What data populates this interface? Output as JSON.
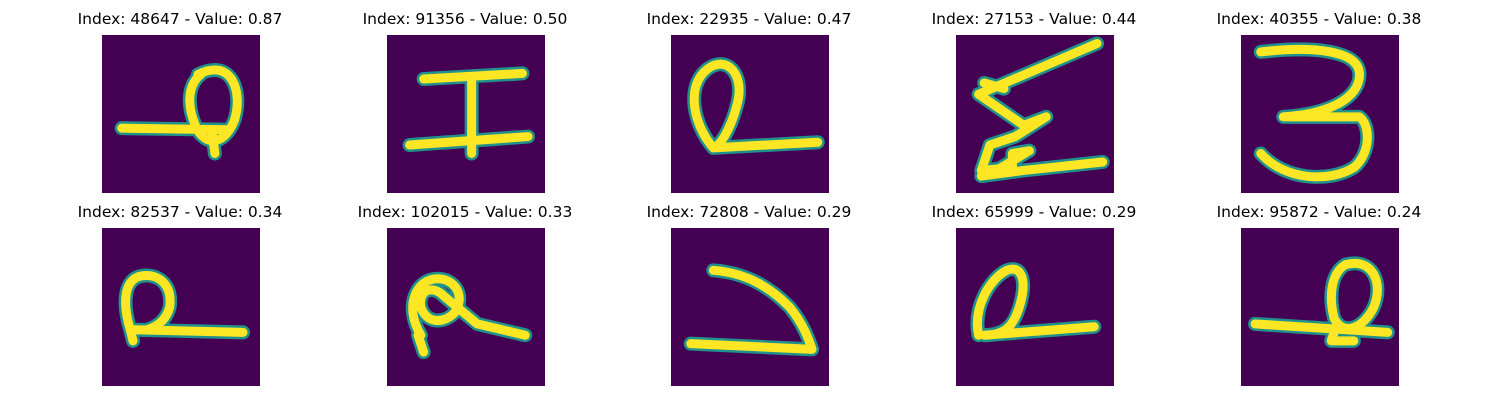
{
  "colormap": "viridis",
  "colors": {
    "background": "#440154",
    "mid": "#21918c",
    "high": "#fde725",
    "title_text": "#000000"
  },
  "panels": [
    {
      "title": "Index: 48647 - Value: 0.87",
      "index": 48647,
      "value": 0.87,
      "image": "handwritten-glyph"
    },
    {
      "title": "Index: 91356 - Value: 0.50",
      "index": 91356,
      "value": 0.5,
      "image": "handwritten-glyph"
    },
    {
      "title": "Index: 22935 - Value: 0.47",
      "index": 22935,
      "value": 0.47,
      "image": "handwritten-glyph"
    },
    {
      "title": "Index: 27153 - Value: 0.44",
      "index": 27153,
      "value": 0.44,
      "image": "handwritten-glyph"
    },
    {
      "title": "Index: 40355 - Value: 0.38",
      "index": 40355,
      "value": 0.38,
      "image": "handwritten-glyph"
    },
    {
      "title": "Index: 82537 - Value: 0.34",
      "index": 82537,
      "value": 0.34,
      "image": "handwritten-glyph"
    },
    {
      "title": "Index: 102015 - Value: 0.33",
      "index": 102015,
      "value": 0.33,
      "image": "handwritten-glyph"
    },
    {
      "title": "Index: 72808 - Value: 0.29",
      "index": 72808,
      "value": 0.29,
      "image": "handwritten-glyph"
    },
    {
      "title": "Index: 65999 - Value: 0.29",
      "index": 65999,
      "value": 0.29,
      "image": "handwritten-glyph"
    },
    {
      "title": "Index: 95872 - Value: 0.24",
      "index": 95872,
      "value": 0.24,
      "image": "handwritten-glyph"
    }
  ]
}
